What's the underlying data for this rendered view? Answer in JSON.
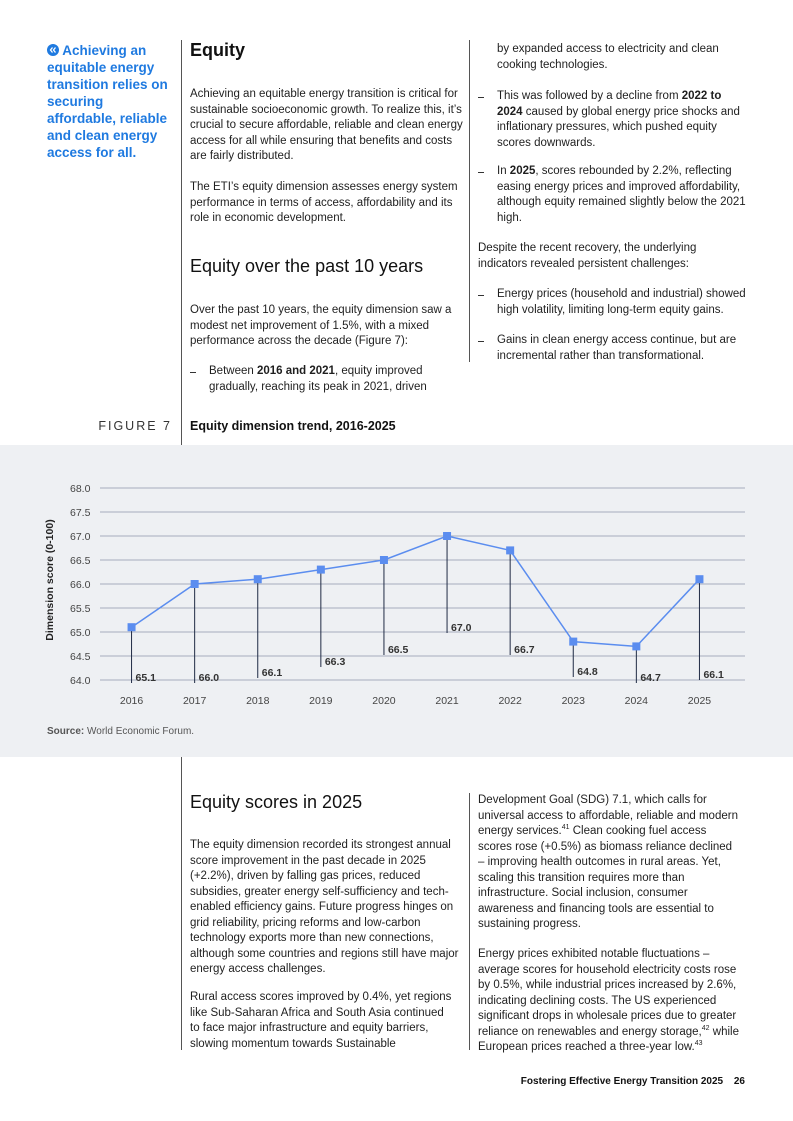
{
  "sidebar": {
    "quote": "Achieving an equitable energy transition relies on securing affordable, reliable and clean energy access for all."
  },
  "intro": {
    "title": "Equity",
    "paragraphs": [
      "Achieving an equitable energy transition is critical for sustainable socioeconomic growth. To realize this, it’s crucial to secure affordable, reliable and clean energy access for all while ensuring that benefits and costs are fairly distributed.",
      "The ETI’s equity dimension assesses energy system performance in terms of access, affordability and its role in economic development."
    ],
    "heading": "Equity over the past 10 years",
    "paragraph": "Over the past 10 years, the equity dimension saw a modest net improvement of 1.5%, with a mixed performance across the decade (Figure 7):",
    "bullet_start": [
      "Between ",
      {
        "b": "2016 and 2021"
      },
      ", equity improved gradually, reaching its peak in 2021, driven"
    ],
    "bullet_continued": "by expanded access to electricity and clean cooking technologies.",
    "bullets": [
      [
        "This was followed by a decline from ",
        {
          "b": "2022 to 2024"
        },
        " caused by global energy price shocks and inflationary pressures, which pushed equity scores downwards."
      ],
      [
        "In ",
        {
          "b": "2025"
        },
        ", scores rebounded by 2.2%, reflecting easing energy prices and improved affordability, although equity remained slightly below the 2021 high."
      ]
    ],
    "paragraph2": "Despite the recent recovery, the underlying indicators revealed persistent challenges:",
    "bullets2": [
      "Energy prices (household and industrial) showed high volatility, limiting long-term equity gains.",
      "Gains in clean energy access continue, but are incremental rather than transformational."
    ]
  },
  "chart_data": {
    "type": "line",
    "figure_label": "FIGURE 7",
    "title": "Equity dimension trend, 2016-2025",
    "y_label": "Dimension score (0-100)",
    "categories": [
      "2016",
      "2017",
      "2018",
      "2019",
      "2020",
      "2021",
      "2022",
      "2023",
      "2024",
      "2025"
    ],
    "series": [
      {
        "name": "Equity",
        "color": "#5b8def",
        "values": [
          65.1,
          66.0,
          66.1,
          66.3,
          66.5,
          67.0,
          66.7,
          64.8,
          64.7,
          66.1
        ],
        "value_labels": [
          "65.1",
          "66.0",
          "66.1",
          "66.3",
          "66.5",
          "67.0",
          "66.7",
          "64.8",
          "64.7",
          "66.1"
        ]
      }
    ],
    "ylim": [
      64,
      68
    ],
    "yticks": [
      {
        "value": 64,
        "label": "64.0"
      },
      64.5,
      {
        "value": 65,
        "label": "65.0"
      },
      65.5,
      {
        "value": 66,
        "label": "66.0"
      },
      66.5,
      {
        "value": 67,
        "label": "67.0"
      },
      67.5,
      {
        "value": 68,
        "label": "68.0"
      }
    ],
    "grid": true,
    "source_label": "Source:",
    "source": "World Economic Forum."
  },
  "scores": {
    "title": "Equity scores in 2025",
    "paragraphs_left": [
      "The equity dimension recorded its strongest annual score improvement in the past decade in 2025 (+2.2%), driven by falling gas prices, reduced subsidies, greater energy self-sufficiency and tech-enabled efficiency gains. Future progress hinges on grid reliability, pricing reforms and low-carbon technology exports more than new connections, although some countries and regions still have major energy access challenges.",
      "Rural access scores improved by 0.4%, yet regions like Sub-Saharan Africa and South Asia continued to face major infrastructure and equity barriers, slowing momentum towards Sustainable"
    ],
    "paragraphs_right": [
      [
        "Development Goal (SDG) 7.1, which calls for universal access to affordable, reliable and modern energy services.",
        {
          "sup": "41"
        },
        " Clean cooking fuel access scores rose (+0.5%) as biomass reliance declined – improving health outcomes in rural areas. Yet, scaling this transition requires more than infrastructure. Social inclusion, consumer awareness and financing tools are essential to sustaining progress."
      ],
      [
        "Energy prices exhibited notable fluctuations – average scores for household electricity costs rose by 0.5%, while industrial prices increased by 2.6%, indicating declining costs. The US experienced significant drops in wholesale prices due to greater reliance on renewables and energy storage,",
        {
          "sup": "42"
        },
        " while European prices reached a three-year low.",
        {
          "sup": "43"
        }
      ]
    ]
  },
  "footer": {
    "title": "Fostering Effective Energy Transition 2025",
    "page": "26"
  }
}
